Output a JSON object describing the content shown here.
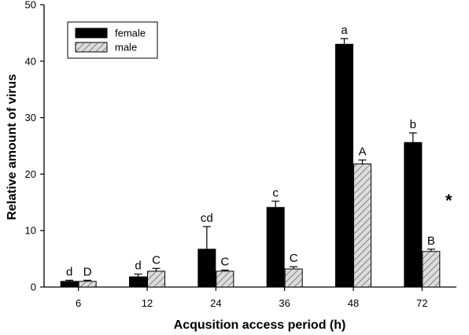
{
  "chart_data": {
    "type": "bar",
    "xlabel": "Acqusition access period (h)",
    "ylabel": "Relative amount of virus",
    "ylim": [
      0,
      50
    ],
    "yticks": [
      0,
      10,
      20,
      30,
      40,
      50
    ],
    "categories": [
      "6",
      "12",
      "24",
      "36",
      "48",
      "72"
    ],
    "series": [
      {
        "name": "female",
        "fill": "#000000",
        "values": [
          1.0,
          1.8,
          6.7,
          14.1,
          43.0,
          25.6
        ],
        "errors": [
          0.2,
          0.5,
          4.0,
          1.1,
          1.0,
          1.7
        ],
        "sig_labels": [
          "d",
          "d",
          "cd",
          "c",
          "a",
          "b"
        ]
      },
      {
        "name": "male",
        "fill": "hatched-gray",
        "values": [
          1.0,
          2.8,
          2.8,
          3.2,
          21.8,
          6.3
        ],
        "errors": [
          0.2,
          0.5,
          0.2,
          0.4,
          0.7,
          0.4
        ],
        "sig_labels": [
          "D",
          "C",
          "C",
          "C",
          "A",
          "B"
        ]
      }
    ],
    "annotations": [
      {
        "text": "*",
        "category": "72"
      }
    ],
    "legend": {
      "position": "top-left",
      "entries": [
        "female",
        "male"
      ]
    },
    "grid": false
  }
}
